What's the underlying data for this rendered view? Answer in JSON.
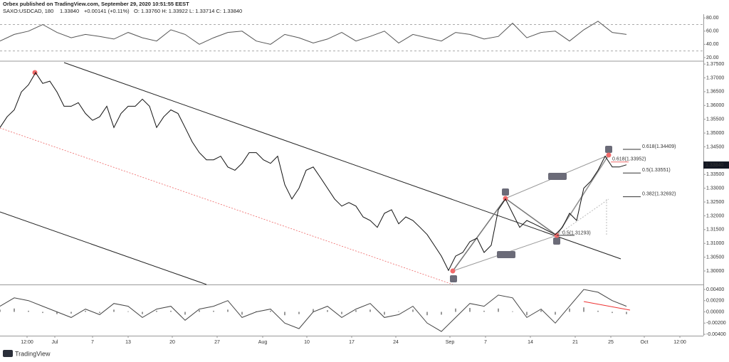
{
  "header": {
    "publisher": "Orbex published on TradingView.com, September 29, 2020 10:51:55 EEST",
    "symbol": "SAXO:USDCAD, 180",
    "price": "1.33840",
    "change": "+0.00141 (+0.11%)",
    "ohlc": "O: 1.33760  H: 1.33922  L: 1.33714  C: 1.33840"
  },
  "footer": {
    "brand": "TradingView"
  },
  "chart_data": [
    {
      "type": "line",
      "color": "#555555",
      "x": [
        0,
        2,
        4,
        6,
        8,
        10,
        12,
        14,
        16,
        18,
        20,
        22,
        24,
        26,
        28,
        30,
        32,
        34,
        36,
        38,
        40,
        42,
        44,
        46,
        48,
        50,
        52,
        54,
        56,
        58,
        60,
        62,
        64,
        66,
        68,
        70,
        72,
        74,
        76,
        78,
        80,
        82,
        84,
        86,
        88
      ],
      "values": [
        45,
        55,
        60,
        70,
        58,
        50,
        55,
        52,
        48,
        58,
        50,
        45,
        62,
        55,
        40,
        50,
        58,
        60,
        45,
        40,
        55,
        50,
        42,
        48,
        58,
        45,
        52,
        60,
        42,
        55,
        50,
        45,
        58,
        55,
        48,
        52,
        72,
        50,
        58,
        60,
        45,
        62,
        75,
        58,
        55
      ],
      "reference_lines": [
        70,
        30
      ],
      "xlim": [
        0,
        98.8
      ],
      "ylim": [
        15.6,
        85.6
      ],
      "yticks": [
        {
          "value": 80,
          "label": "80.00"
        },
        {
          "value": 60,
          "label": "60.00"
        },
        {
          "value": 40,
          "label": "40.00"
        },
        {
          "value": 20,
          "label": "20.00"
        }
      ]
    },
    {
      "type": "line",
      "color": "#111111",
      "x": [
        0,
        1,
        2,
        3,
        4,
        5,
        6,
        7,
        8,
        9,
        10,
        11,
        12,
        13,
        14,
        15,
        16,
        17,
        18,
        19,
        20,
        21,
        22,
        23,
        24,
        25,
        26,
        27,
        28,
        29,
        30,
        31,
        32,
        33,
        34,
        35,
        36,
        37,
        38,
        39,
        40,
        41,
        42,
        43,
        44,
        45,
        46,
        47,
        48,
        49,
        50,
        51,
        52,
        53,
        54,
        55,
        56,
        57,
        58,
        59,
        60,
        61,
        62,
        63,
        64,
        65,
        66,
        67,
        68,
        69,
        70,
        71,
        72,
        73,
        74,
        75,
        76,
        77,
        78,
        79,
        80,
        81,
        82,
        83,
        84,
        85,
        86,
        87,
        88
      ],
      "values": [
        1.352,
        1.3559,
        1.3584,
        1.3649,
        1.3675,
        1.3719,
        1.368,
        1.3688,
        1.3649,
        1.3597,
        1.3597,
        1.361,
        1.3571,
        1.3546,
        1.3559,
        1.3597,
        1.352,
        1.3571,
        1.3597,
        1.3597,
        1.3623,
        1.3597,
        1.352,
        1.3559,
        1.3584,
        1.3571,
        1.352,
        1.3468,
        1.3429,
        1.3403,
        1.3403,
        1.3416,
        1.3377,
        1.3365,
        1.339,
        1.3429,
        1.3429,
        1.3403,
        1.339,
        1.3416,
        1.3313,
        1.3261,
        1.33,
        1.3365,
        1.3377,
        1.3339,
        1.33,
        1.3261,
        1.3235,
        1.3248,
        1.3235,
        1.3196,
        1.3183,
        1.3158,
        1.3209,
        1.3222,
        1.3171,
        1.3196,
        1.3183,
        1.3158,
        1.3132,
        1.3093,
        1.3054,
        1.3002,
        1.3054,
        1.3067,
        1.3106,
        1.3119,
        1.3067,
        1.3093,
        1.3222,
        1.3261,
        1.3209,
        1.3158,
        1.3183,
        1.3171,
        1.3158,
        1.3145,
        1.3132,
        1.3158,
        1.3209,
        1.3183,
        1.33,
        1.3326,
        1.3365,
        1.3416,
        1.3377,
        1.3377,
        1.3385
      ],
      "last_price": {
        "value": 1.3384,
        "label": "1.33840"
      },
      "annotations": [
        {
          "value": 1.34409,
          "label": "0.618(1.34409)"
        },
        {
          "value": 1.33551,
          "label": "0.5(1.33551)"
        },
        {
          "value": 1.32692,
          "label": "0.382(1.32692)"
        },
        {
          "value": 1.31293,
          "label": "0.5(1.31293)"
        },
        {
          "value": 1.33952,
          "label": "0.618(1.33952)"
        }
      ],
      "xlim": [
        0,
        98.8
      ],
      "ylim": [
        1.2951,
        1.3758
      ],
      "yticks": [
        {
          "value": 1.375,
          "label": "1.37500"
        },
        {
          "value": 1.37,
          "label": "1.37000"
        },
        {
          "value": 1.365,
          "label": "1.36500"
        },
        {
          "value": 1.36,
          "label": "1.36000"
        },
        {
          "value": 1.355,
          "label": "1.35500"
        },
        {
          "value": 1.35,
          "label": "1.35000"
        },
        {
          "value": 1.345,
          "label": "1.34500"
        },
        {
          "value": 1.335,
          "label": "1.33500"
        },
        {
          "value": 1.33,
          "label": "1.33000"
        },
        {
          "value": 1.325,
          "label": "1.32500"
        },
        {
          "value": 1.32,
          "label": "1.32000"
        },
        {
          "value": 1.315,
          "label": "1.31500"
        },
        {
          "value": 1.31,
          "label": "1.31000"
        },
        {
          "value": 1.305,
          "label": "1.30500"
        },
        {
          "value": 1.3,
          "label": "1.30000"
        }
      ]
    },
    {
      "type": "line",
      "color": "#444444",
      "bar_color": "#999999",
      "x": [
        0,
        2,
        4,
        6,
        8,
        10,
        12,
        14,
        16,
        18,
        20,
        22,
        24,
        26,
        28,
        30,
        32,
        34,
        36,
        38,
        40,
        42,
        44,
        46,
        48,
        50,
        52,
        54,
        56,
        58,
        60,
        62,
        64,
        66,
        68,
        70,
        72,
        74,
        76,
        78,
        80,
        82,
        84,
        86,
        88
      ],
      "values": [
        0.001,
        0.0025,
        0.002,
        0.001,
        0.0,
        -0.001,
        0.0005,
        -0.0005,
        0.0015,
        0.001,
        -0.001,
        0.0005,
        0.001,
        -0.0015,
        0.0005,
        0.001,
        0.002,
        -0.001,
        0.0,
        0.0005,
        -0.002,
        -0.003,
        0.0,
        0.001,
        -0.001,
        0.0005,
        0.0015,
        -0.001,
        -0.0005,
        0.001,
        -0.002,
        -0.0035,
        -0.001,
        0.0015,
        0.001,
        0.003,
        0.0025,
        -0.001,
        0.0005,
        -0.002,
        0.001,
        0.004,
        0.0035,
        0.002,
        0.001
      ],
      "bars": [
        0.0004,
        0.0006,
        0.0002,
        -0.0002,
        -0.0004,
        -0.0003,
        0.0002,
        -0.0002,
        0.0004,
        0.0001,
        -0.0004,
        0.0002,
        0.0002,
        -0.0005,
        0.0003,
        0.0002,
        0.0004,
        -0.0005,
        0.0001,
        0.0002,
        -0.0006,
        -0.0004,
        0.0005,
        0.0003,
        -0.0004,
        0.0003,
        0.0004,
        -0.0005,
        0.0001,
        0.0004,
        -0.0006,
        -0.0005,
        0.0006,
        0.0007,
        0.0002,
        0.0006,
        0.0001,
        -0.0006,
        0.0003,
        -0.0005,
        0.0006,
        0.0008,
        0.0002,
        -0.0002,
        -0.0004
      ],
      "xlim": [
        0,
        98.8
      ],
      "ylim": [
        -0.00425,
        0.00476
      ],
      "yticks": [
        {
          "value": 0.004,
          "label": "0.00400"
        },
        {
          "value": 0.002,
          "label": "0.00200"
        },
        {
          "value": 0,
          "label": "0.00000"
        },
        {
          "value": -0.002,
          "label": "-0.00200"
        },
        {
          "value": -0.004,
          "label": "-0.00400"
        }
      ],
      "xticks": [
        {
          "value": 3.8,
          "label": "12:00"
        },
        {
          "value": 7.7,
          "label": "Jul"
        },
        {
          "value": 13,
          "label": "7"
        },
        {
          "value": 18,
          "label": "13"
        },
        {
          "value": 24.2,
          "label": "20"
        },
        {
          "value": 30.5,
          "label": "27"
        },
        {
          "value": 36.9,
          "label": "Aug"
        },
        {
          "value": 43.1,
          "label": "10"
        },
        {
          "value": 49.4,
          "label": "17"
        },
        {
          "value": 55.6,
          "label": "24"
        },
        {
          "value": 63.2,
          "label": "Sep"
        },
        {
          "value": 68.2,
          "label": "7"
        },
        {
          "value": 74.5,
          "label": "14"
        },
        {
          "value": 80.8,
          "label": "21"
        },
        {
          "value": 85.8,
          "label": "25"
        },
        {
          "value": 90.5,
          "label": "Oct"
        },
        {
          "value": 95.5,
          "label": "12:00"
        }
      ]
    }
  ]
}
